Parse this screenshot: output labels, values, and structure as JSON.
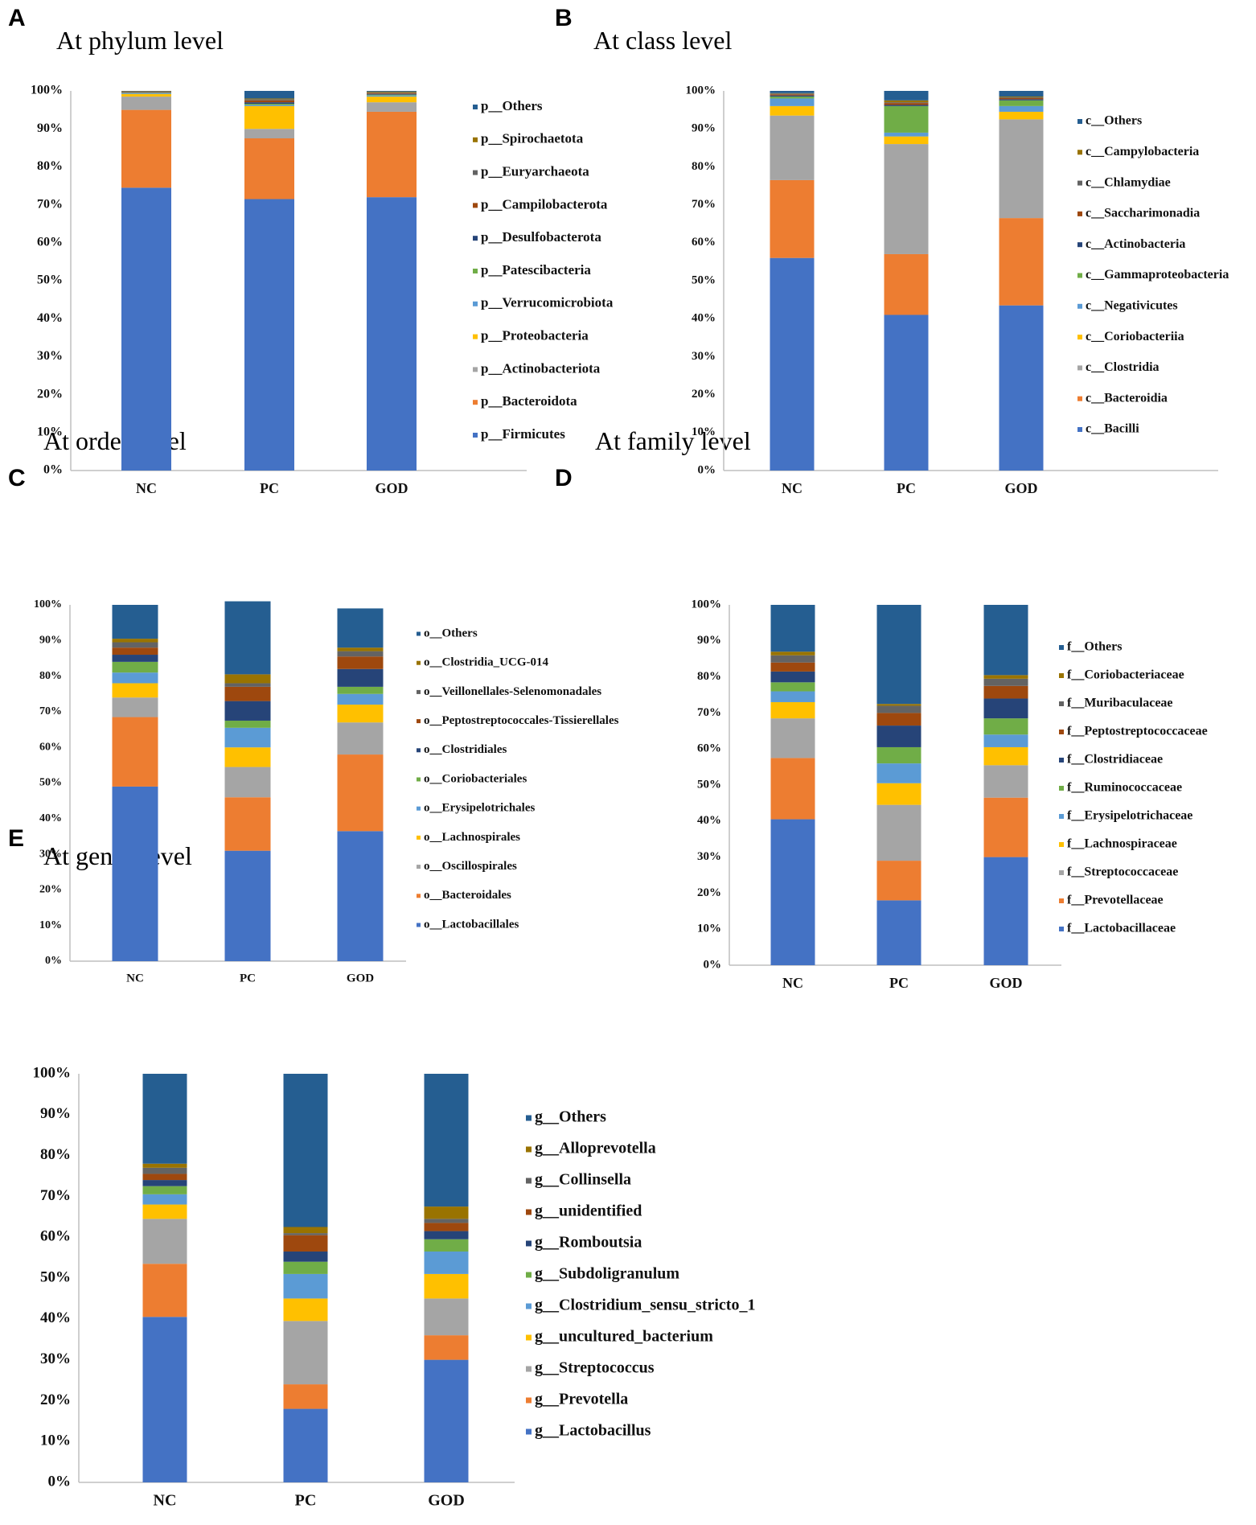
{
  "figure": {
    "colors": {
      "Firmicutes": "#4472C4",
      "Bacteroidota": "#ED7D31",
      "Actinobacteriota": "#A5A5A5",
      "Proteobacteria": "#FFC000",
      "Verrucomicrobiota": "#5B9BD5",
      "Patescibacteria": "#70AD47",
      "Desulfobacterota": "#264478",
      "Campilobacterota": "#9E480E",
      "Euryarchaeota": "#636363",
      "Spirochaetota": "#997300",
      "Others": "#255E91"
    }
  },
  "chart_data": [
    {
      "panel": "A",
      "type": "bar",
      "stacked": true,
      "title": "At phylum level",
      "categories": [
        "NC",
        "PC",
        "GOD"
      ],
      "ylim": [
        0,
        100
      ],
      "yticks": [
        "0%",
        "10%",
        "20%",
        "30%",
        "40%",
        "50%",
        "60%",
        "70%",
        "80%",
        "90%",
        "100%"
      ],
      "legend_position": "right",
      "series": [
        {
          "name": "p__Firmicutes",
          "values": [
            74.5,
            71.5,
            72.0
          ]
        },
        {
          "name": "p__Bacteroidota",
          "values": [
            20.5,
            16.0,
            22.5
          ]
        },
        {
          "name": "p__Actinobacteriota",
          "values": [
            3.5,
            2.5,
            2.5
          ]
        },
        {
          "name": "p__Proteobacteria",
          "values": [
            0.7,
            6.0,
            1.5
          ]
        },
        {
          "name": "p__Verrucomicrobiota",
          "values": [
            0.2,
            0.3,
            0.3
          ]
        },
        {
          "name": "p__Patescibacteria",
          "values": [
            0.1,
            0.3,
            0.2
          ]
        },
        {
          "name": "p__Desulfobacterota",
          "values": [
            0.1,
            0.4,
            0.2
          ]
        },
        {
          "name": "p__Campilobacterota",
          "values": [
            0.1,
            0.5,
            0.2
          ]
        },
        {
          "name": "p__Euryarchaeota",
          "values": [
            0.1,
            0.3,
            0.2
          ]
        },
        {
          "name": "p__Spirochaetota",
          "values": [
            0.1,
            0.2,
            0.2
          ]
        },
        {
          "name": "p__Others",
          "values": [
            0.1,
            2.0,
            0.2
          ]
        }
      ]
    },
    {
      "panel": "B",
      "type": "bar",
      "stacked": true,
      "title": "At class level",
      "categories": [
        "NC",
        "PC",
        "GOD"
      ],
      "ylim": [
        0,
        100
      ],
      "yticks": [
        "0%",
        "10%",
        "20%",
        "30%",
        "40%",
        "50%",
        "60%",
        "70%",
        "80%",
        "90%",
        "100%"
      ],
      "legend_position": "right",
      "series": [
        {
          "name": "c__Bacilli",
          "values": [
            56.0,
            41.0,
            43.5
          ]
        },
        {
          "name": "c__Bacteroidia",
          "values": [
            20.5,
            16.0,
            23.0
          ]
        },
        {
          "name": "c__Clostridia",
          "values": [
            17.0,
            29.0,
            26.0
          ]
        },
        {
          "name": "c__Coriobacteriia",
          "values": [
            2.5,
            2.0,
            2.0
          ]
        },
        {
          "name": "c__Negativicutes",
          "values": [
            2.0,
            1.0,
            1.5
          ]
        },
        {
          "name": "c__Gammaproteobacteria",
          "values": [
            0.5,
            7.0,
            1.5
          ]
        },
        {
          "name": "c__Actinobacteria",
          "values": [
            0.3,
            0.3,
            0.3
          ]
        },
        {
          "name": "c__Saccharimonadia",
          "values": [
            0.3,
            0.5,
            0.3
          ]
        },
        {
          "name": "c__Chlamydiae",
          "values": [
            0.2,
            0.2,
            0.2
          ]
        },
        {
          "name": "c__Campylobacteria",
          "values": [
            0.1,
            0.5,
            0.2
          ]
        },
        {
          "name": "c__Others",
          "values": [
            0.6,
            2.5,
            1.5
          ]
        }
      ]
    },
    {
      "panel": "C",
      "type": "bar",
      "stacked": true,
      "title": "At order level",
      "categories": [
        "NC",
        "PC",
        "GOD"
      ],
      "ylim": [
        0,
        100
      ],
      "yticks": [
        "0%",
        "10%",
        "20%",
        "30%",
        "40%",
        "50%",
        "60%",
        "70%",
        "80%",
        "90%",
        "100%"
      ],
      "legend_position": "right",
      "series": [
        {
          "name": "o__Lactobacillales",
          "values": [
            49.0,
            31.0,
            36.5
          ]
        },
        {
          "name": "o__Bacteroidales",
          "values": [
            19.5,
            15.0,
            21.5
          ]
        },
        {
          "name": "o__Oscillospirales",
          "values": [
            5.5,
            8.5,
            9.0
          ]
        },
        {
          "name": "o__Lachnospirales",
          "values": [
            4.0,
            5.5,
            5.0
          ]
        },
        {
          "name": "o__Erysipelotrichales",
          "values": [
            3.0,
            5.5,
            3.0
          ]
        },
        {
          "name": "o__Coriobacteriales",
          "values": [
            3.0,
            2.0,
            2.0
          ]
        },
        {
          "name": "o__Clostridiales",
          "values": [
            2.0,
            5.5,
            5.0
          ]
        },
        {
          "name": "o__Peptostreptococcales-Tissierellales",
          "values": [
            2.0,
            4.0,
            3.5
          ]
        },
        {
          "name": "o__Veillonellales-Selenomonadales",
          "values": [
            1.5,
            1.0,
            1.5
          ]
        },
        {
          "name": "o__Clostridia_UCG-014",
          "values": [
            1.0,
            2.5,
            1.0
          ]
        },
        {
          "name": "o__Others",
          "values": [
            9.5,
            20.5,
            11.0
          ]
        }
      ]
    },
    {
      "panel": "D",
      "type": "bar",
      "stacked": true,
      "title": "At family level",
      "categories": [
        "NC",
        "PC",
        "GOD"
      ],
      "ylim": [
        0,
        100
      ],
      "yticks": [
        "0%",
        "10%",
        "20%",
        "30%",
        "40%",
        "50%",
        "60%",
        "70%",
        "80%",
        "90%",
        "100%"
      ],
      "legend_position": "right",
      "series": [
        {
          "name": "f__Lactobacillaceae",
          "values": [
            40.5,
            18.0,
            30.0
          ]
        },
        {
          "name": "f__Prevotellaceae",
          "values": [
            17.0,
            11.0,
            16.5
          ]
        },
        {
          "name": "f__Streptococcaceae",
          "values": [
            11.0,
            15.5,
            9.0
          ]
        },
        {
          "name": "f__Lachnospiraceae",
          "values": [
            4.5,
            6.0,
            5.0
          ]
        },
        {
          "name": "f__Erysipelotrichaceae",
          "values": [
            3.0,
            5.5,
            3.5
          ]
        },
        {
          "name": "f__Ruminococcaceae",
          "values": [
            2.5,
            4.5,
            4.5
          ]
        },
        {
          "name": "f__Clostridiaceae",
          "values": [
            3.0,
            6.0,
            5.5
          ]
        },
        {
          "name": "f__Peptostreptococcaceae",
          "values": [
            2.5,
            3.5,
            3.5
          ]
        },
        {
          "name": "f__Muribaculaceae",
          "values": [
            2.0,
            2.0,
            2.0
          ]
        },
        {
          "name": "f__Coriobacteriaceae",
          "values": [
            1.0,
            0.5,
            1.0
          ]
        },
        {
          "name": "f__Others",
          "values": [
            13.0,
            27.5,
            19.5
          ]
        }
      ]
    },
    {
      "panel": "E",
      "type": "bar",
      "stacked": true,
      "title": "At genus level",
      "categories": [
        "NC",
        "PC",
        "GOD"
      ],
      "ylim": [
        0,
        100
      ],
      "yticks": [
        "0%",
        "10%",
        "20%",
        "30%",
        "40%",
        "50%",
        "60%",
        "70%",
        "80%",
        "90%",
        "100%"
      ],
      "legend_position": "right",
      "series": [
        {
          "name": "g__Lactobacillus",
          "values": [
            40.5,
            18.0,
            30.0
          ]
        },
        {
          "name": "g__Prevotella",
          "values": [
            13.0,
            6.0,
            6.0
          ]
        },
        {
          "name": "g__Streptococcus",
          "values": [
            11.0,
            15.5,
            9.0
          ]
        },
        {
          "name": "g__uncultured_bacterium",
          "values": [
            3.5,
            5.5,
            6.0
          ]
        },
        {
          "name": "g__Clostridium_sensu_stricto_1",
          "values": [
            2.5,
            6.0,
            5.5
          ]
        },
        {
          "name": "g__Subdoligranulum",
          "values": [
            2.0,
            3.0,
            3.0
          ]
        },
        {
          "name": "g__Romboutsia",
          "values": [
            1.5,
            2.5,
            2.0
          ]
        },
        {
          "name": "g__unidentified",
          "values": [
            1.5,
            4.0,
            2.0
          ]
        },
        {
          "name": "g__Collinsella",
          "values": [
            1.5,
            0.5,
            1.0
          ]
        },
        {
          "name": "g__Alloprevotella",
          "values": [
            1.0,
            1.5,
            3.0
          ]
        },
        {
          "name": "g__Others",
          "values": [
            22.0,
            37.5,
            32.5
          ]
        }
      ]
    }
  ]
}
